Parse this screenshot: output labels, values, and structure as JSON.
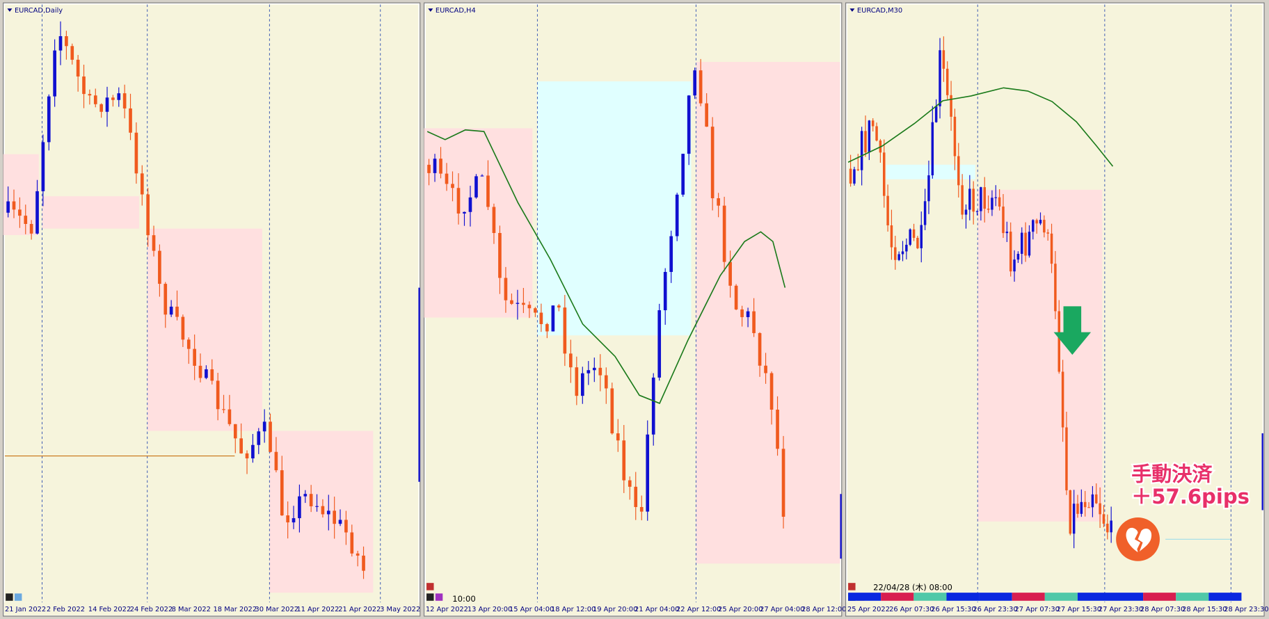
{
  "panels": [
    {
      "title": "EURCAD,Daily",
      "dates": [
        "21 Jan 2022",
        "2 Feb 2022",
        "14 Feb 2022",
        "24 Feb 2022",
        "8 Mar 2022",
        "18 Mar 2022",
        "30 Mar 2022",
        "11 Apr 2022",
        "21 Apr 2022",
        "3 May 2022"
      ]
    },
    {
      "title": "EURCAD,H4",
      "time_label": "10:00",
      "dates": [
        "12 Apr 2022",
        "13 Apr 20:00",
        "15 Apr 04:00",
        "18 Apr 12:00",
        "19 Apr 20:00",
        "21 Apr 04:00",
        "22 Apr 12:00",
        "25 Apr 20:00",
        "27 Apr 04:00",
        "28 Apr 12:00"
      ]
    },
    {
      "title": "EURCAD,M30",
      "time_label": "22/04/28 (木) 08:00",
      "dates": [
        "25 Apr 2022",
        "26 Apr 07:30",
        "26 Apr 15:30",
        "26 Apr 23:30",
        "27 Apr 07:30",
        "27 Apr 15:30",
        "27 Apr 23:30",
        "28 Apr 07:30",
        "28 Apr 15:30",
        "28 Apr 23:30"
      ]
    }
  ],
  "annotation": {
    "line1": "手動決済",
    "line2": "＋57.6pips"
  }
}
